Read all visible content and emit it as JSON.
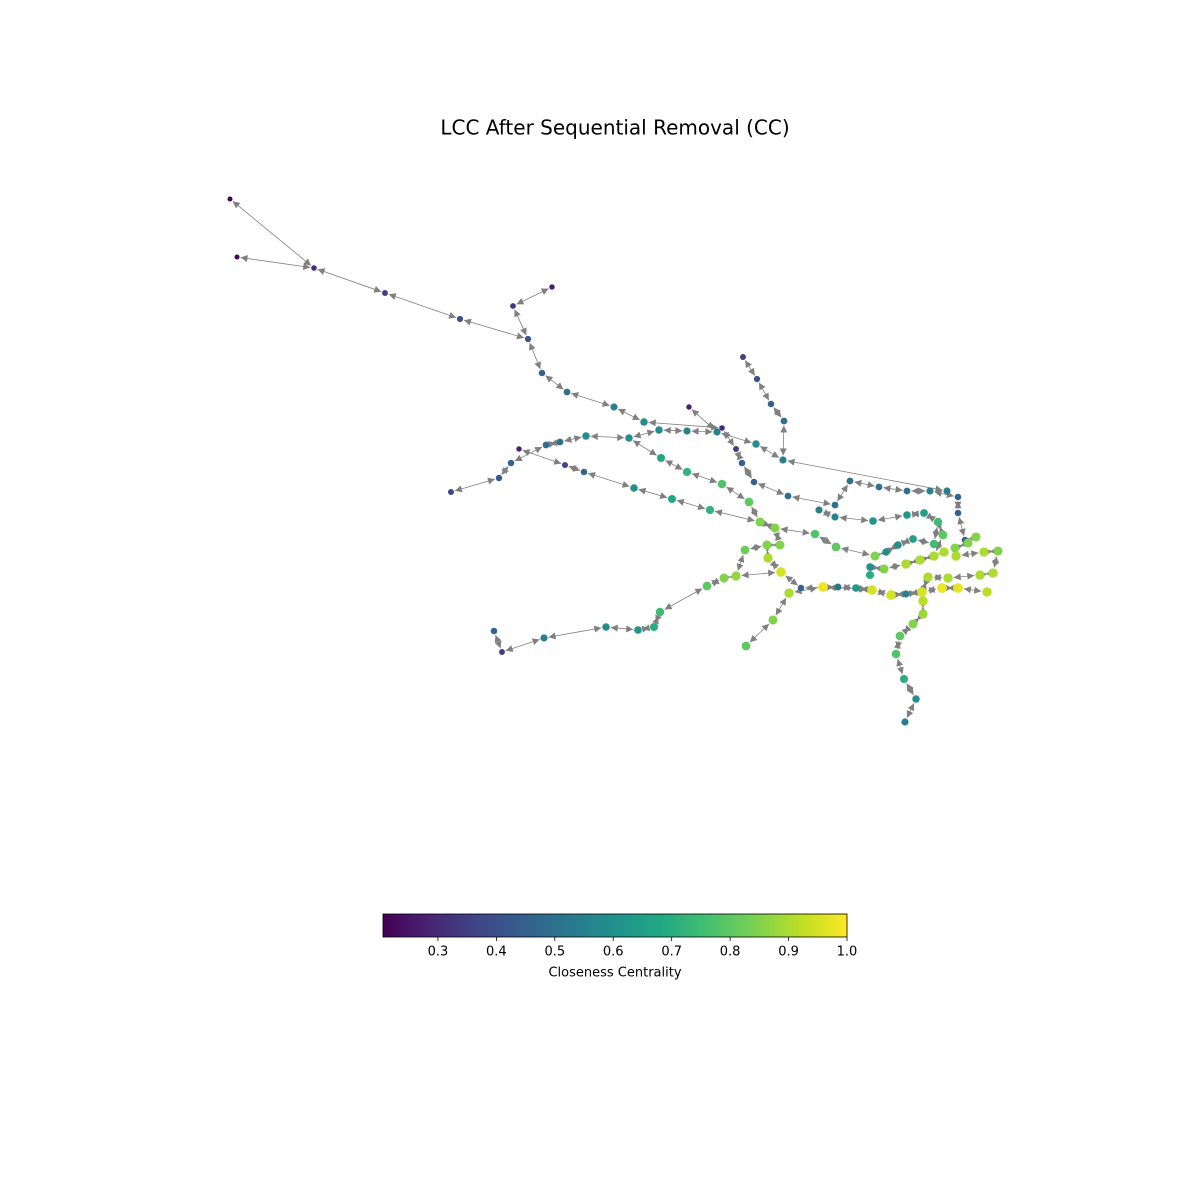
{
  "chart_data": {
    "type": "network",
    "title": "LCC After Sequential Removal (CC)",
    "colorbar_label": "Closeness Centrality",
    "clim": [
      0.206,
      1.0
    ],
    "colorbar_ticks": [
      0.3,
      0.4,
      0.5,
      0.6,
      0.7,
      0.8,
      0.9,
      {
        "value": 1.0,
        "label": "1.0"
      }
    ],
    "edge_color": "#808080",
    "values": [
      0.21,
      0.22,
      0.3,
      0.35,
      0.4,
      0.33,
      0.27,
      0.42,
      0.45,
      0.5,
      0.55,
      0.6,
      0.27,
      0.3,
      0.35,
      0.4,
      0.45,
      0.5,
      0.55,
      0.6,
      0.45,
      0.35,
      0.55,
      0.55,
      0.6,
      0.6,
      0.6,
      0.5,
      0.48,
      0.27,
      0.45,
      0.43,
      0.38,
      0.38,
      0.45,
      0.6,
      0.68,
      0.72,
      0.85,
      0.8,
      0.78,
      0.72,
      0.68,
      0.45,
      0.5,
      0.55,
      0.55,
      0.5,
      0.5,
      0.5,
      0.5,
      0.55,
      0.55,
      0.45,
      0.45,
      0.65,
      0.62,
      0.62,
      0.75,
      0.8,
      0.45,
      0.85,
      0.85,
      0.85,
      0.9,
      0.75,
      0.65,
      0.6,
      0.6,
      0.85,
      0.6,
      0.7,
      0.85,
      0.9,
      0.9,
      0.9,
      0.9,
      0.85,
      0.9,
      0.9,
      0.9,
      0.9,
      0.95,
      0.55,
      0.95,
      0.95,
      0.62,
      0.52,
      0.98,
      0.45,
      0.9,
      0.95,
      0.85,
      0.85,
      0.78,
      0.8,
      0.85,
      0.9,
      0.82,
      0.87,
      0.85,
      0.8,
      0.75,
      0.7,
      0.62,
      0.6,
      0.55,
      0.35,
      0.45,
      0.85,
      0.8,
      0.98,
      0.97,
      0.92,
      0.92,
      0.88,
      0.85,
      0.8,
      0.78,
      0.7,
      0.6,
      0.55,
      0.9
    ]
  }
}
